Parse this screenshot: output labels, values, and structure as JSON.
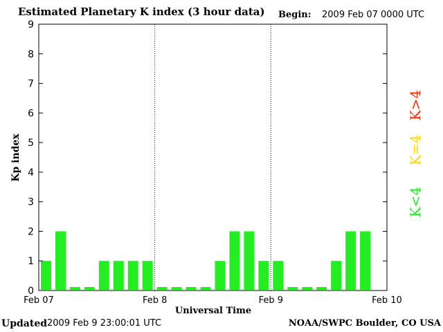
{
  "header": {
    "title": "Estimated Planetary K index (3 hour data)",
    "begin_label": "Begin:",
    "begin_value": "2009 Feb 07 0000 UTC"
  },
  "footer": {
    "updated_label": "Updated",
    "updated_value": "2009 Feb  9 23:00:01 UTC",
    "credit": "NOAA/SWPC Boulder, CO USA"
  },
  "legend": [
    {
      "label": "K>4",
      "color": "#ff2a00"
    },
    {
      "label": "K=4",
      "color": "#ffd700"
    },
    {
      "label": "K<4",
      "color": "#22ee22"
    }
  ],
  "chart_data": {
    "type": "bar",
    "title": "Estimated Planetary K index (3 hour data)",
    "xlabel": "Universal Time",
    "ylabel": "Kp index",
    "ylim": [
      0,
      9
    ],
    "yticks": [
      0,
      1,
      2,
      3,
      4,
      5,
      6,
      7,
      8,
      9
    ],
    "xticks": [
      "Feb 07",
      "Feb 8",
      "Feb 9",
      "Feb 10"
    ],
    "day_dividers": [
      "Feb 8",
      "Feb 9"
    ],
    "interval_hours": 3,
    "bar_color": "#22ee22",
    "values": [
      1,
      2,
      0,
      0,
      1,
      1,
      1,
      1,
      0,
      0,
      0,
      0,
      1,
      2,
      2,
      1,
      1,
      0,
      0,
      0,
      1,
      2,
      2
    ]
  }
}
